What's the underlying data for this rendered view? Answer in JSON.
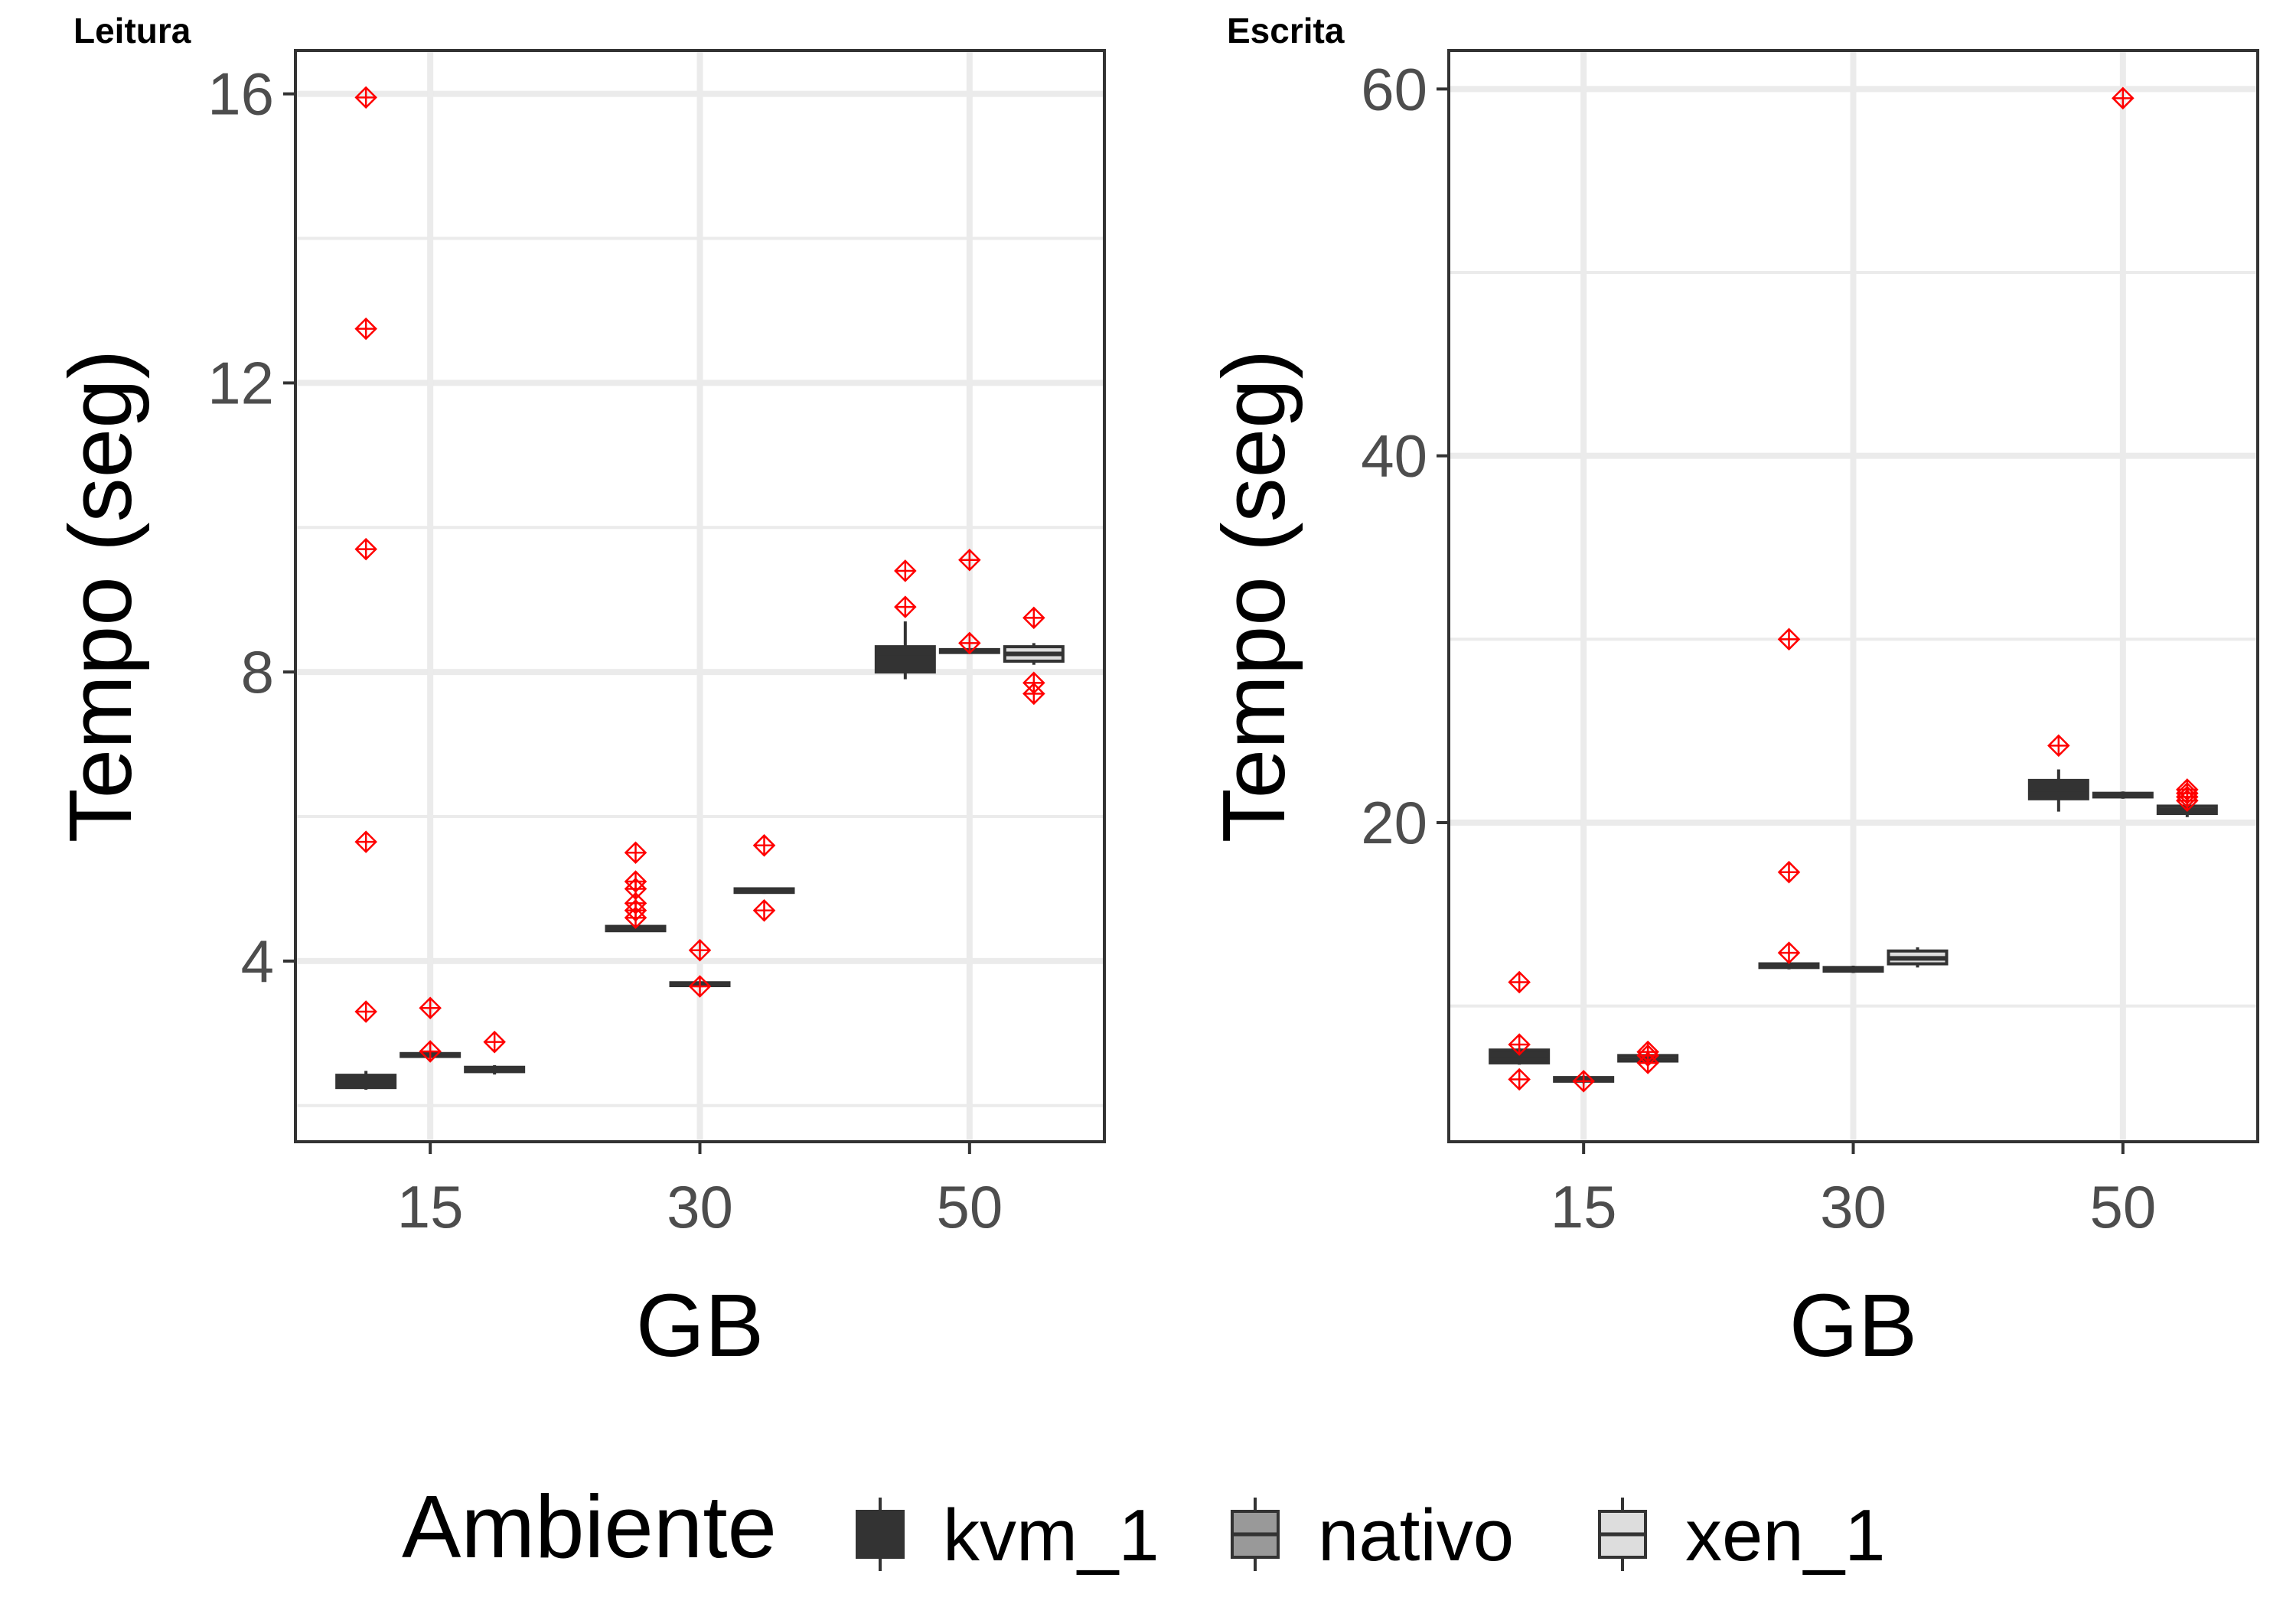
{
  "chart_data": [
    {
      "type": "box",
      "title": "Leitura",
      "xlabel": "GB",
      "ylabel": "Tempo (seg)",
      "categories": [
        "15",
        "30",
        "50"
      ],
      "ylim": [
        1.5,
        16.6
      ],
      "yticks": [
        4,
        8,
        12,
        16
      ],
      "grid": true,
      "series": [
        {
          "name": "kvm_1",
          "boxes": [
            {
              "category": "15",
              "q1": 2.25,
              "median": 2.3,
              "q3": 2.42,
              "whisker_low": 2.22,
              "whisker_high": 2.48,
              "outliers": [
                15.95,
                12.75,
                9.7,
                5.65,
                3.3
              ]
            },
            {
              "category": "30",
              "q1": 4.42,
              "median": 4.45,
              "q3": 4.48,
              "whisker_low": 4.42,
              "whisker_high": 4.48,
              "outliers": [
                5.5,
                5.1,
                5.0,
                4.8,
                4.7,
                4.6
              ]
            },
            {
              "category": "50",
              "q1": 8.0,
              "median": 8.2,
              "q3": 8.35,
              "whisker_low": 7.9,
              "whisker_high": 8.7,
              "outliers": [
                9.4,
                8.9
              ]
            }
          ]
        },
        {
          "name": "nativo",
          "boxes": [
            {
              "category": "15",
              "q1": 2.68,
              "median": 2.7,
              "q3": 2.72,
              "whisker_low": 2.67,
              "whisker_high": 2.73,
              "outliers": [
                3.35,
                2.75
              ]
            },
            {
              "category": "30",
              "q1": 3.66,
              "median": 3.68,
              "q3": 3.7,
              "whisker_low": 3.64,
              "whisker_high": 3.72,
              "outliers": [
                4.15,
                3.65
              ]
            },
            {
              "category": "50",
              "q1": 8.27,
              "median": 8.29,
              "q3": 8.31,
              "whisker_low": 8.25,
              "whisker_high": 8.33,
              "outliers": [
                9.55,
                8.4
              ]
            }
          ]
        },
        {
          "name": "xen_1",
          "boxes": [
            {
              "category": "15",
              "q1": 2.47,
              "median": 2.5,
              "q3": 2.53,
              "whisker_low": 2.43,
              "whisker_high": 2.56,
              "outliers": [
                2.88
              ]
            },
            {
              "category": "30",
              "q1": 4.95,
              "median": 4.97,
              "q3": 5.0,
              "whisker_low": 4.93,
              "whisker_high": 5.02,
              "outliers": [
                5.6,
                4.7
              ]
            },
            {
              "category": "50",
              "q1": 8.15,
              "median": 8.25,
              "q3": 8.35,
              "whisker_low": 8.1,
              "whisker_high": 8.4,
              "outliers": [
                8.75,
                7.85,
                7.7
              ]
            }
          ]
        }
      ]
    },
    {
      "type": "box",
      "title": "Escrita",
      "xlabel": "GB",
      "ylabel": "Tempo (seg)",
      "categories": [
        "15",
        "30",
        "50"
      ],
      "ylim": [
        2.6,
        62.1
      ],
      "yticks": [
        20,
        40,
        60
      ],
      "grid": true,
      "series": [
        {
          "name": "kvm_1",
          "boxes": [
            {
              "category": "15",
              "q1": 6.9,
              "median": 7.1,
              "q3": 7.6,
              "whisker_low": 6.8,
              "whisker_high": 7.7,
              "outliers": [
                11.3,
                7.9,
                6.0
              ]
            },
            {
              "category": "30",
              "q1": 12.1,
              "median": 12.2,
              "q3": 12.3,
              "whisker_low": 12.0,
              "whisker_high": 12.4,
              "outliers": [
                30.0,
                17.3,
                12.9
              ]
            },
            {
              "category": "50",
              "q1": 21.3,
              "median": 21.8,
              "q3": 22.3,
              "whisker_low": 20.6,
              "whisker_high": 22.9,
              "outliers": [
                24.2
              ]
            }
          ]
        },
        {
          "name": "nativo",
          "boxes": [
            {
              "category": "15",
              "q1": 5.9,
              "median": 6.0,
              "q3": 6.1,
              "whisker_low": 5.8,
              "whisker_high": 6.2,
              "outliers": [
                5.9
              ]
            },
            {
              "category": "30",
              "q1": 11.9,
              "median": 12.0,
              "q3": 12.1,
              "whisker_low": 11.8,
              "whisker_high": 12.2,
              "outliers": []
            },
            {
              "category": "50",
              "q1": 21.4,
              "median": 21.5,
              "q3": 21.6,
              "whisker_low": 21.3,
              "whisker_high": 21.7,
              "outliers": [
                59.5
              ]
            }
          ]
        },
        {
          "name": "xen_1",
          "boxes": [
            {
              "category": "15",
              "q1": 7.0,
              "median": 7.1,
              "q3": 7.3,
              "whisker_low": 6.8,
              "whisker_high": 7.5,
              "outliers": [
                7.5,
                7.3,
                6.9
              ]
            },
            {
              "category": "30",
              "q1": 12.3,
              "median": 12.6,
              "q3": 13.0,
              "whisker_low": 12.1,
              "whisker_high": 13.2,
              "outliers": []
            },
            {
              "category": "50",
              "q1": 20.5,
              "median": 20.7,
              "q3": 20.9,
              "whisker_low": 20.3,
              "whisker_high": 21.0,
              "outliers": [
                21.8,
                21.6,
                21.4,
                21.2
              ]
            }
          ]
        }
      ]
    }
  ],
  "legend": {
    "title": "Ambiente",
    "position": "bottom",
    "items": [
      {
        "label": "kvm_1",
        "color": "#333333"
      },
      {
        "label": "nativo",
        "color": "#999999"
      },
      {
        "label": "xen_1",
        "color": "#dddddd"
      }
    ]
  },
  "colors": {
    "outlier": "#ff0000",
    "grid": "#ebebeb",
    "panel_border": "#333333",
    "box_line": "#333333"
  }
}
